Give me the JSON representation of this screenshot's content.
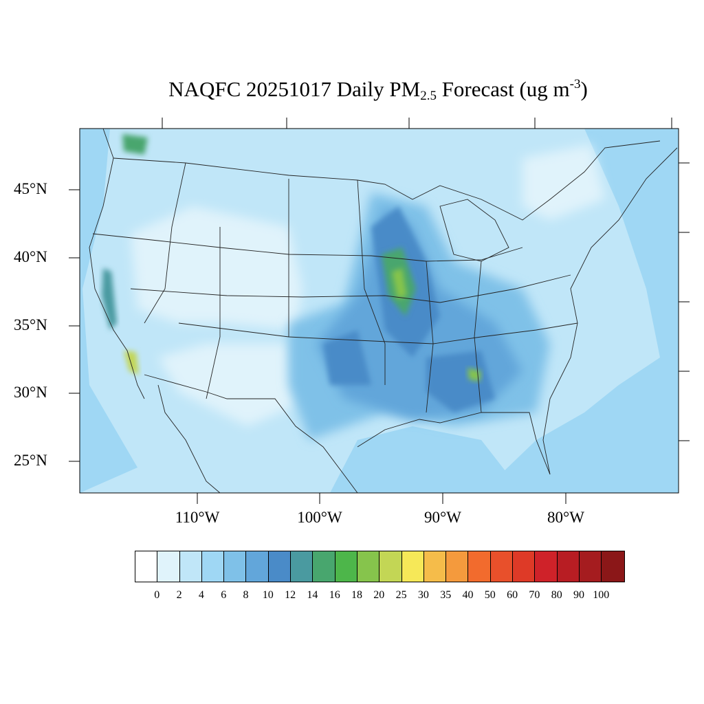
{
  "title": {
    "prefix": "NAQFC 20251017 Daily PM",
    "subscript": "2.5",
    "middle": " Forecast (ug m",
    "superscript": "-3",
    "suffix": ")"
  },
  "lat_labels": [
    "45°N",
    "40°N",
    "35°N",
    "30°N",
    "25°N"
  ],
  "lon_labels": [
    "110°W",
    "100°W",
    "90°W",
    "80°W"
  ],
  "legend": {
    "levels": [
      "0",
      "2",
      "4",
      "6",
      "8",
      "10",
      "12",
      "14",
      "16",
      "18",
      "20",
      "25",
      "30",
      "35",
      "40",
      "50",
      "60",
      "70",
      "80",
      "90",
      "100"
    ],
    "colors": [
      "#ffffff",
      "#e0f3fb",
      "#c0e6f8",
      "#9fd7f4",
      "#7fc1e8",
      "#62a6da",
      "#4a8bc8",
      "#4a9aa0",
      "#48a66e",
      "#4db64a",
      "#86c44c",
      "#c3d655",
      "#f6e858",
      "#f5bc4a",
      "#f49a3d",
      "#f26b2d",
      "#e8502b",
      "#de3a27",
      "#cf2229",
      "#b81d23",
      "#a51c1f",
      "#8b1718"
    ]
  }
}
